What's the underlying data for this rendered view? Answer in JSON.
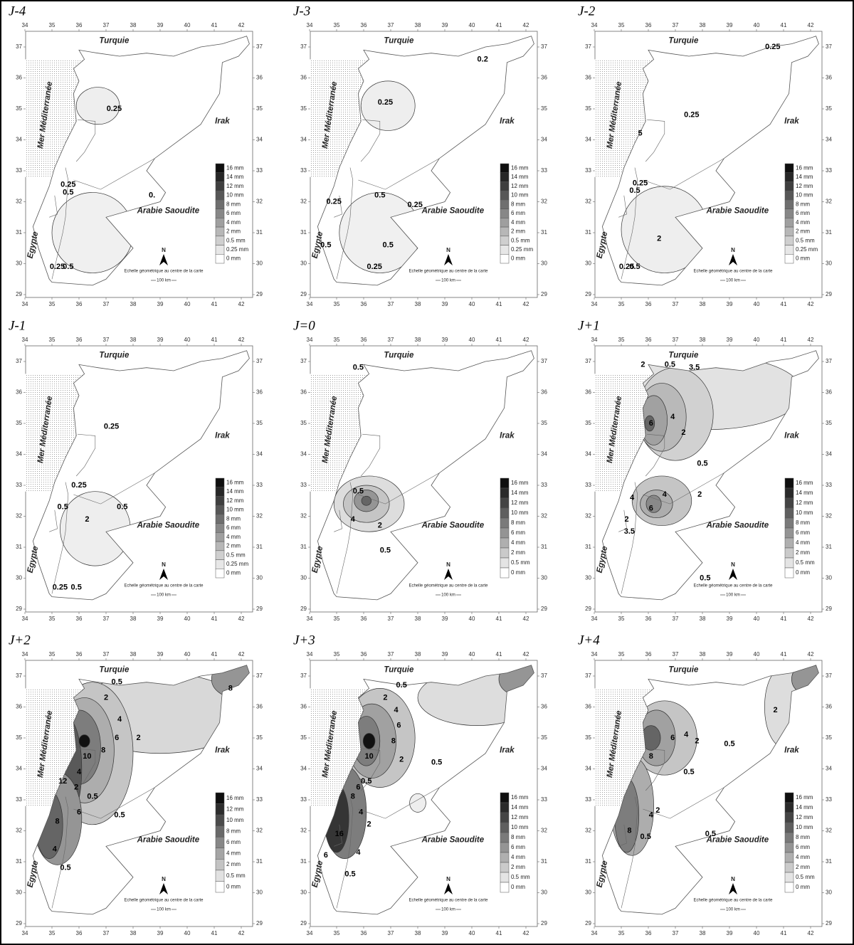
{
  "figure": {
    "x_ticks": [
      34,
      35,
      36,
      37,
      38,
      39,
      40,
      41,
      42
    ],
    "y_ticks": [
      29,
      30,
      31,
      32,
      33,
      34,
      35,
      36,
      37
    ],
    "labels": {
      "turkey": "Turquie",
      "iraq": "Irak",
      "sea": "Mer Méditerranée",
      "saudi": "Arabie Saoudite",
      "egypt": "Egypte"
    },
    "north": "N",
    "scale_caption": "Echelle géométrique au centre de la carte",
    "scale_length": "100 km"
  },
  "panels": [
    {
      "title": "J-4",
      "legend": [
        "16 mm",
        "14 mm",
        "12 mm",
        "10 mm",
        "8 mm",
        "6 mm",
        "4 mm",
        "2 mm",
        "0.5 mm",
        "0.25 mm",
        "0 mm"
      ],
      "contour_labels": [
        "0.25",
        "0.25",
        "0.5",
        "0.",
        "0.25",
        "0.5"
      ]
    },
    {
      "title": "J-3",
      "legend": [
        "16 mm",
        "14 mm",
        "12 mm",
        "10 mm",
        "8 mm",
        "6 mm",
        "4 mm",
        "2 mm",
        "0.5 mm",
        "0.25 mm",
        "0 mm"
      ],
      "contour_labels": [
        "0.2",
        "0.25",
        "0.5",
        "0.25",
        "0.25",
        "0.5",
        "0.5",
        "0.25"
      ]
    },
    {
      "title": "J-2",
      "legend": [
        "16 mm",
        "14 mm",
        "12 mm",
        "10 mm",
        "8 mm",
        "6 mm",
        "4 mm",
        "2 mm",
        "0.5 mm",
        "0.25 mm",
        "0 mm"
      ],
      "contour_labels": [
        "0.25",
        "0.25",
        "5",
        "0.25",
        "0.5",
        "2",
        "0.25",
        "0.5"
      ]
    },
    {
      "title": "J-1",
      "legend": [
        "16 mm",
        "14 mm",
        "12 mm",
        "10 mm",
        "8 mm",
        "6 mm",
        "4 mm",
        "2 mm",
        "0.5 mm",
        "0.25 mm",
        "0 mm"
      ],
      "contour_labels": [
        "0.25",
        "0.25",
        "0.5",
        "0.5",
        "2",
        "0.25",
        "0.5"
      ]
    },
    {
      "title": "J=0",
      "legend": [
        "16 mm",
        "14 mm",
        "12 mm",
        "10 mm",
        "8 mm",
        "6 mm",
        "4 mm",
        "2 mm",
        "0.5 mm",
        "0 mm"
      ],
      "contour_labels": [
        "0.5",
        "0.5",
        "4",
        "2",
        "0.5"
      ]
    },
    {
      "title": "J+1",
      "legend": [
        "16 mm",
        "14 mm",
        "12 mm",
        "10 mm",
        "8 mm",
        "6 mm",
        "4 mm",
        "2 mm",
        "0.5 mm",
        "0 mm"
      ],
      "contour_labels": [
        "2",
        "0.5",
        "3.5",
        "6",
        "4",
        "2",
        "0.5",
        "2",
        "4",
        "4",
        "6",
        "2",
        "3.5",
        "0.5"
      ]
    },
    {
      "title": "J+2",
      "legend": [
        "16 mm",
        "12 mm",
        "10 mm",
        "8 mm",
        "6 mm",
        "4 mm",
        "2 mm",
        "0.5 mm",
        "0 mm"
      ],
      "contour_labels": [
        "0.5",
        "2",
        "4",
        "6",
        "8",
        "10",
        "12",
        "4",
        "2",
        "6",
        "8",
        "0.5",
        "0.5",
        "2",
        "8",
        "4",
        "0.5"
      ]
    },
    {
      "title": "J+3",
      "legend": [
        "16 mm",
        "14 mm",
        "12 mm",
        "10 mm",
        "8 mm",
        "6 mm",
        "4 mm",
        "2 mm",
        "0.5 mm",
        "0 mm"
      ],
      "contour_labels": [
        "0.5",
        "2",
        "4",
        "6",
        "8",
        "10",
        "2",
        "0.5",
        "6",
        "8",
        "0.5",
        "4",
        "2",
        "16",
        "6",
        "4",
        "0.5"
      ]
    },
    {
      "title": "J+4",
      "legend": [
        "16 mm",
        "14 mm",
        "12 mm",
        "10 mm",
        "8 mm",
        "6 mm",
        "4 mm",
        "2 mm",
        "0.5 mm",
        "0 mm"
      ],
      "contour_labels": [
        "2",
        "0.5",
        "6",
        "4",
        "2",
        "8",
        "0.5",
        "4",
        "2",
        "8",
        "0.5",
        "0.5"
      ]
    }
  ]
}
